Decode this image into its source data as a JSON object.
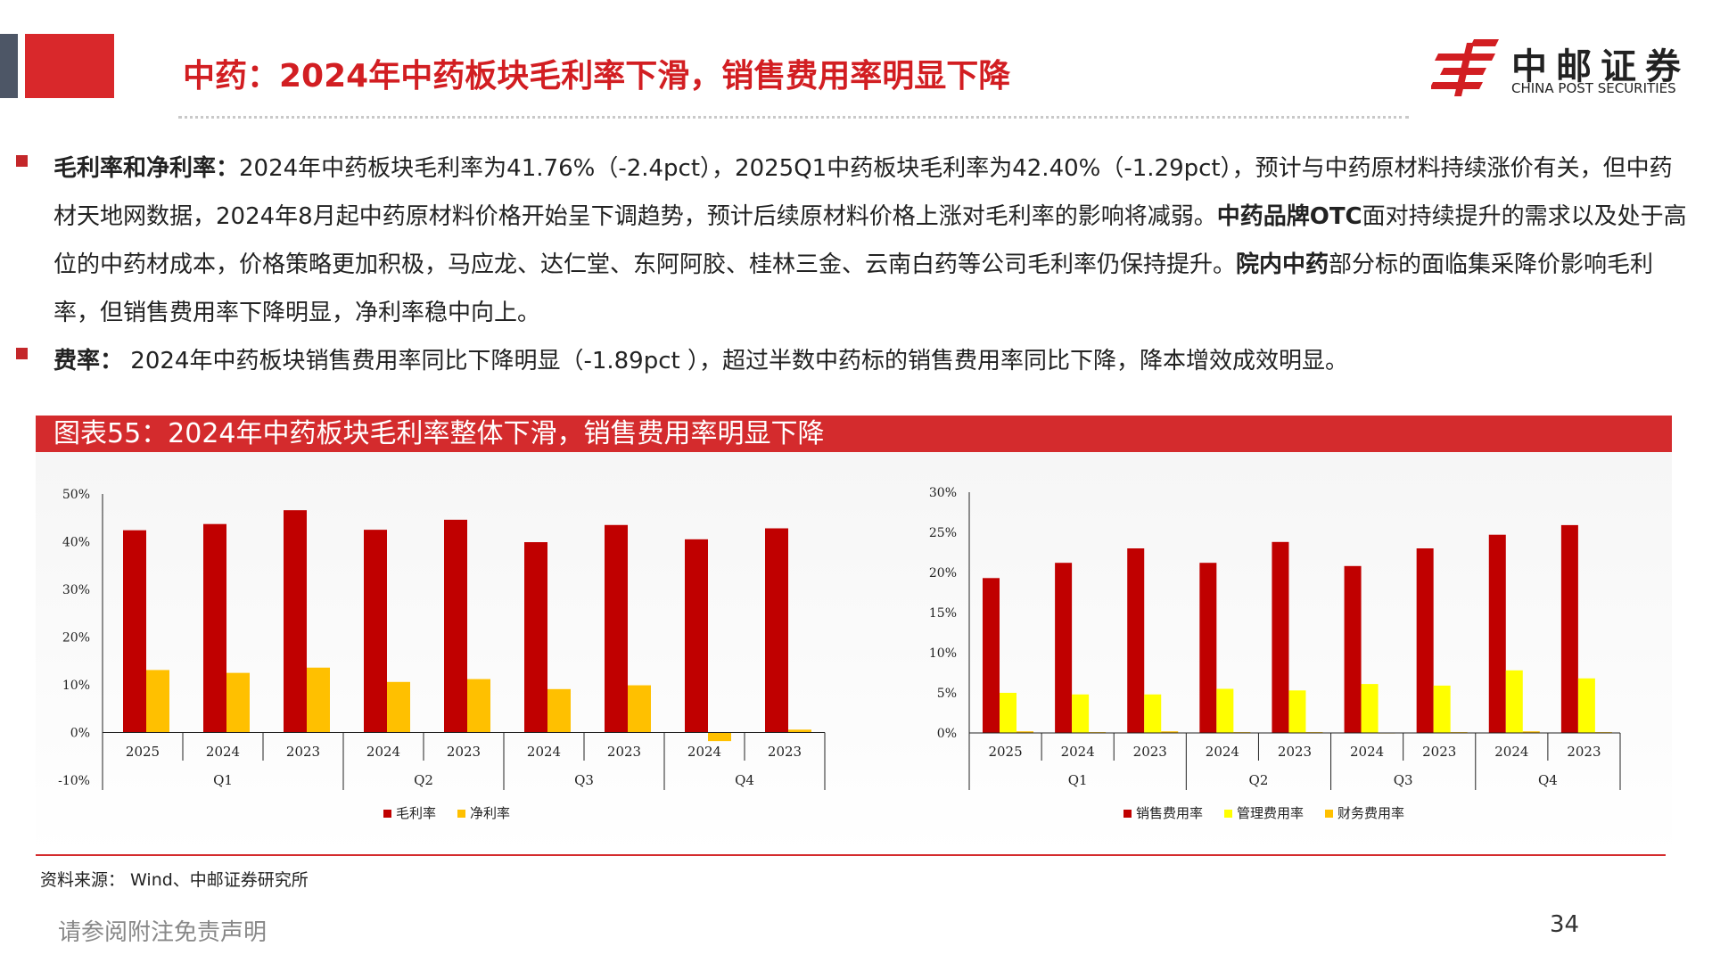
{
  "header": {
    "title": "中药：2024年中药板块毛利率下滑，销售费用率明显下降",
    "logo_cn": "中邮证券",
    "logo_en": "CHINA POST SECURITIES",
    "colors": {
      "brand_red": "#d21e22",
      "gray_block": "#4d5666"
    }
  },
  "bullets": [
    {
      "lead": "毛利率和净利率：",
      "seg1": "2024年中药板块毛利率为41.76%（-2.4pct），2025Q1中药板块毛利率为42.40%（-1.29pct），预计与中药原材料持续涨价有关，但中药材天地网数据，2024年8月起中药原材料价格开始呈下调趋势，预计后续原材料价格上涨对毛利率的影响将减弱。",
      "bold2": "中药品牌OTC",
      "seg2": "面对持续提升的需求以及处于高位的中药材成本，价格策略更加积极，马应龙、达仁堂、东阿阿胶、桂林三金、云南白药等公司毛利率仍保持提升。",
      "bold3": "院内中药",
      "seg3": "部分标的面临集采降价影响毛利率，但销售费用率下降明显，净利率稳中向上。"
    },
    {
      "lead": "费率：",
      "seg1": " 2024年中药板块销售费用率同比下降明显（-1.89pct ），超过半数中药标的销售费用率同比下降，降本增效成效明显。"
    }
  ],
  "figure": {
    "title": "图表55：2024年中药板块毛利率整体下滑，销售费用率明显下降"
  },
  "chart_data": [
    {
      "type": "bar",
      "groups": [
        "Q1",
        "Q2",
        "Q3",
        "Q4"
      ],
      "categories": [
        "2025",
        "2024",
        "2023",
        "2024",
        "2023",
        "2024",
        "2023",
        "2024",
        "2023"
      ],
      "category_group": [
        "Q1",
        "Q1",
        "Q1",
        "Q2",
        "Q2",
        "Q3",
        "Q3",
        "Q4",
        "Q4"
      ],
      "series": [
        {
          "name": "毛利率",
          "color": "#c00000",
          "values": [
            42.4,
            43.7,
            46.6,
            42.5,
            44.6,
            39.9,
            43.5,
            40.5,
            42.8
          ]
        },
        {
          "name": "净利率",
          "color": "#ffc000",
          "values": [
            13.1,
            12.5,
            13.6,
            10.6,
            11.2,
            9.1,
            9.9,
            -1.8,
            0.6
          ]
        }
      ],
      "ylim": [
        -10,
        50
      ],
      "yticks": [
        "50%",
        "40%",
        "30%",
        "20%",
        "10%",
        "0%",
        "-10%"
      ],
      "legend": "bottom"
    },
    {
      "type": "bar",
      "groups": [
        "Q1",
        "Q2",
        "Q3",
        "Q4"
      ],
      "categories": [
        "2025",
        "2024",
        "2023",
        "2024",
        "2023",
        "2024",
        "2023",
        "2024",
        "2023"
      ],
      "category_group": [
        "Q1",
        "Q1",
        "Q1",
        "Q2",
        "Q2",
        "Q3",
        "Q3",
        "Q4",
        "Q4"
      ],
      "series": [
        {
          "name": "销售费用率",
          "color": "#c00000",
          "values": [
            19.3,
            21.2,
            23.0,
            21.2,
            23.8,
            20.8,
            23.0,
            24.7,
            25.9
          ]
        },
        {
          "name": "管理费用率",
          "color": "#ffff00",
          "values": [
            5.0,
            4.8,
            4.8,
            5.5,
            5.3,
            6.1,
            5.9,
            7.8,
            6.8
          ]
        },
        {
          "name": "财务费用率",
          "color": "#ffc000",
          "values": [
            0.2,
            0.1,
            0.2,
            0.1,
            0.1,
            0.0,
            0.1,
            0.2,
            0.1
          ]
        }
      ],
      "ylim": [
        0,
        30
      ],
      "yticks": [
        "30%",
        "25%",
        "20%",
        "15%",
        "10%",
        "5%",
        "0%"
      ],
      "legend": "bottom"
    }
  ],
  "footer": {
    "source": "资料来源：  Wind、中邮证券研究所",
    "disclaimer": "请参阅附注免责声明",
    "page": "34"
  }
}
